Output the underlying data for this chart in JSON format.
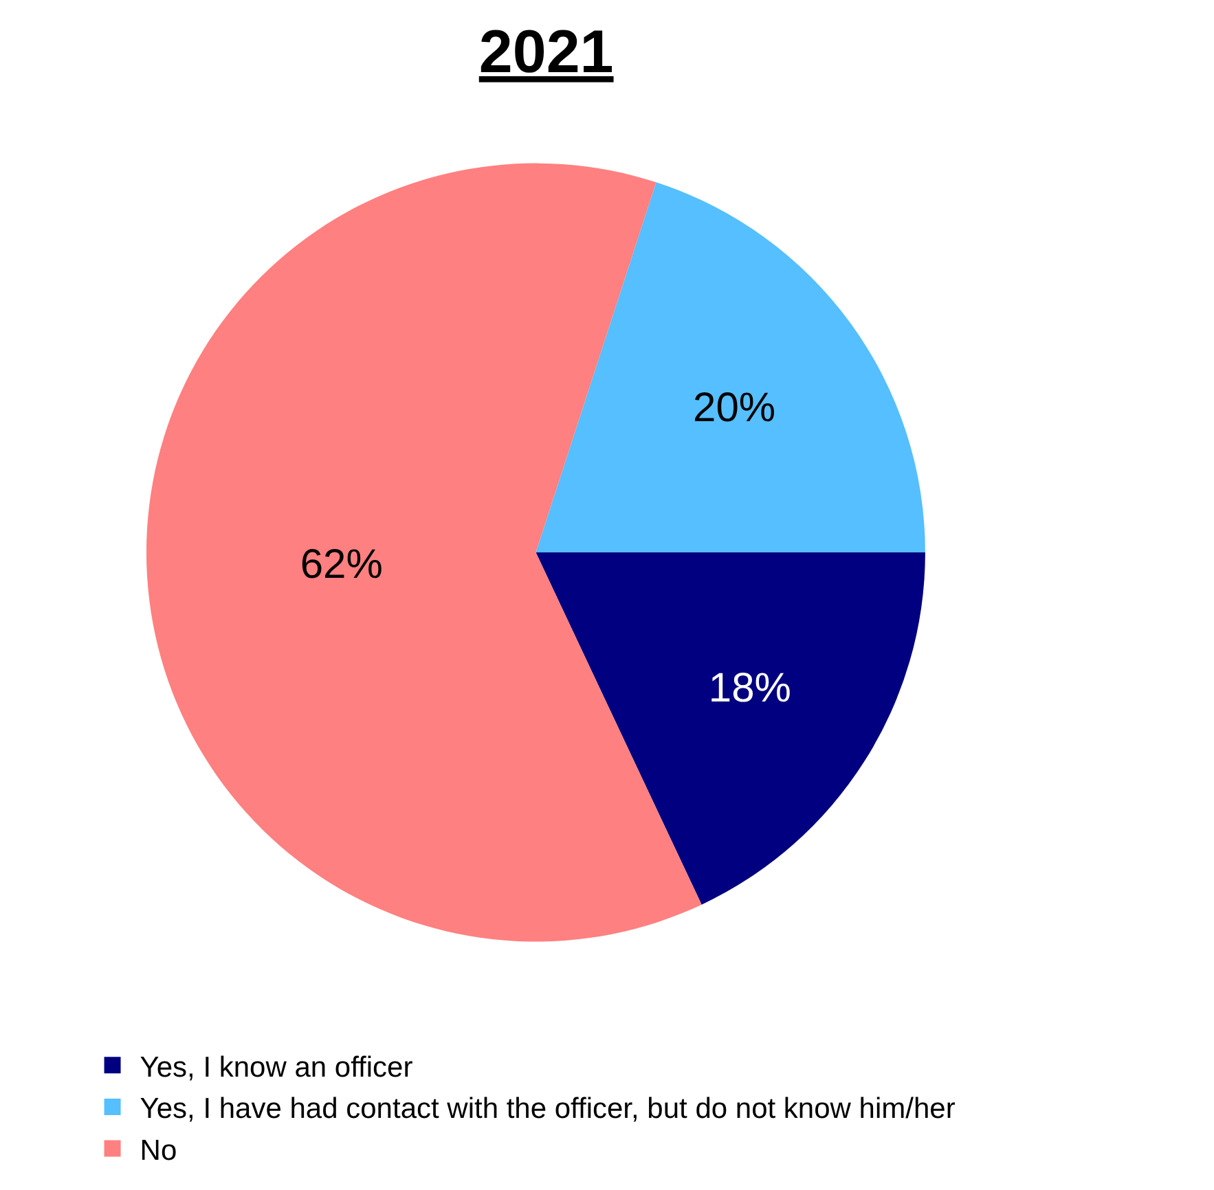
{
  "chart_data": {
    "type": "pie",
    "title": "2021",
    "categories": [
      "Yes, I know an officer",
      "Yes, I have had contact with the officer, but do not know him/her",
      "No"
    ],
    "values": [
      18,
      20,
      62
    ],
    "colors": [
      "#000080",
      "#55bfff",
      "#ff8080"
    ],
    "value_labels": [
      "18%",
      "20%",
      "62%"
    ],
    "legend": "bottom"
  }
}
